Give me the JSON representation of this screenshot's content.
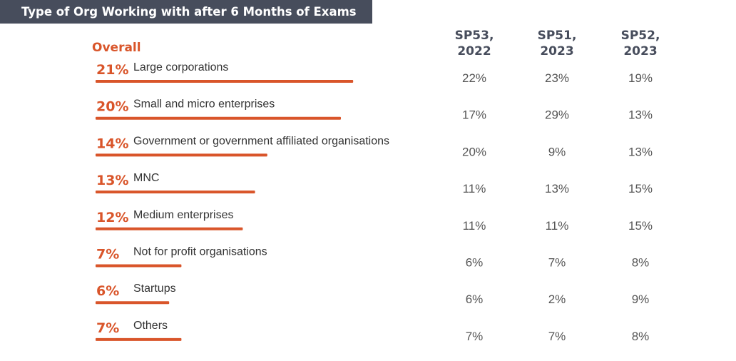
{
  "title": "Type of Org Working with after 6 Months of Exams",
  "overall_label": "Overall",
  "columns": [
    {
      "line1": "SP53,",
      "line2": "2022"
    },
    {
      "line1": "SP51,",
      "line2": "2023"
    },
    {
      "line1": "SP52,",
      "line2": "2023"
    }
  ],
  "colors": {
    "accent": "#d9552a",
    "header_bg": "#474d5c",
    "value_text": "#555555"
  },
  "chart_data": {
    "type": "bar",
    "categories": [
      "Large corporations",
      "Small and micro enterprises",
      "Government or government affiliated organisations",
      "MNC",
      "Medium enterprises",
      "Not for profit organisations",
      "Startups",
      "Others"
    ],
    "overall_labels": [
      "21%",
      "20%",
      "14%",
      "13%",
      "12%",
      "7%",
      "6%",
      "7%"
    ],
    "values": [
      21,
      20,
      14,
      13,
      12,
      7,
      6,
      7
    ],
    "series": [
      {
        "name": "SP53, 2022",
        "labels": [
          "22%",
          "17%",
          "20%",
          "11%",
          "11%",
          "6%",
          "6%",
          "7%"
        ]
      },
      {
        "name": "SP51, 2023",
        "labels": [
          "23%",
          "29%",
          "9%",
          "13%",
          "11%",
          "7%",
          "2%",
          "7%"
        ]
      },
      {
        "name": "SP52, 2023",
        "labels": [
          "19%",
          "13%",
          "13%",
          "15%",
          "15%",
          "8%",
          "9%",
          "8%"
        ]
      }
    ]
  }
}
